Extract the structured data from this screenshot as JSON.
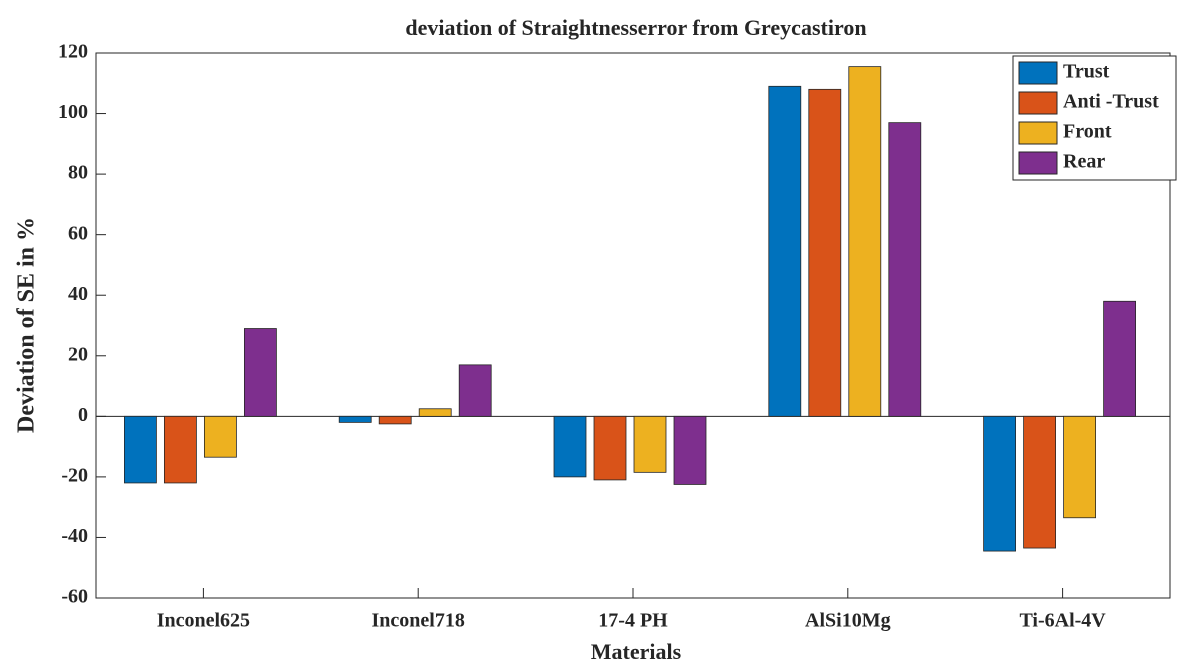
{
  "chart_data": {
    "type": "bar",
    "title": "deviation of Straightnesserror from Greycastiron",
    "x_label": "Materials",
    "y_label": "Deviation of SE in %",
    "categories": [
      "Inconel625",
      "Inconel718",
      "17-4 PH",
      "AlSi10Mg",
      "Ti-6Al-4V"
    ],
    "series": [
      {
        "name": "Trust",
        "color": "#0072bd",
        "values": [
          -22,
          -2,
          -20,
          109,
          -44.5
        ]
      },
      {
        "name": "Anti -Trust",
        "color": "#d95319",
        "values": [
          -22,
          -2.5,
          -21,
          108,
          -43.5
        ]
      },
      {
        "name": "Front",
        "color": "#edb120",
        "values": [
          -13.5,
          2.5,
          -18.5,
          115.5,
          -33.5
        ]
      },
      {
        "name": "Rear",
        "color": "#7e2f8e",
        "values": [
          29,
          17,
          -22.5,
          97,
          38
        ]
      }
    ],
    "ylim": [
      -60,
      120
    ],
    "yticks": [
      -60,
      -40,
      -20,
      0,
      20,
      40,
      60,
      80,
      100,
      120
    ],
    "legend": "upper right"
  }
}
